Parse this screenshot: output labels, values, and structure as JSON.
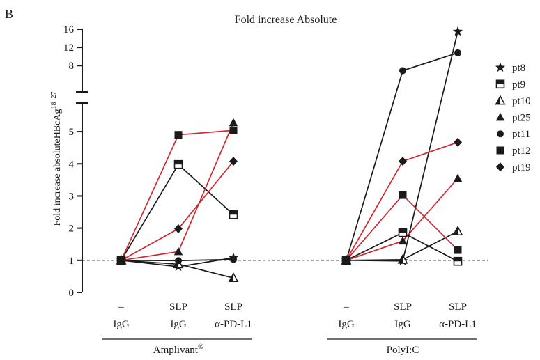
{
  "chart_data": {
    "type": "line",
    "panel_label": "B",
    "title": "Fold increase Absolute",
    "ylabel": "Fold increase absoluteHBcAg",
    "ylabel_superscript": "18–27",
    "ylim_lower": [
      0,
      5.5
    ],
    "ylim_upper": [
      6.5,
      16
    ],
    "y_ticks_lower": [
      "0",
      "1",
      "2",
      "3",
      "4",
      "5"
    ],
    "y_ticks_upper": [
      "8",
      "12",
      "16"
    ],
    "y_tick_values_lower": [
      0,
      1,
      2,
      3,
      4,
      5
    ],
    "y_tick_values_upper": [
      8,
      12,
      16
    ],
    "reference_line": 1,
    "groups": [
      {
        "name": "Amplivant",
        "name_superscript": "®",
        "categories": [
          {
            "line1": "–",
            "line2": "IgG"
          },
          {
            "line1": "SLP",
            "line2": "IgG"
          },
          {
            "line1": "SLP",
            "line2": "α-PD-L1"
          }
        ]
      },
      {
        "name": "PolyI:C",
        "name_superscript": "",
        "categories": [
          {
            "line1": "–",
            "line2": "IgG"
          },
          {
            "line1": "SLP",
            "line2": "IgG"
          },
          {
            "line1": "SLP",
            "line2": "α-PD-L1"
          }
        ]
      }
    ],
    "series": [
      {
        "name": "pt8",
        "marker": "star",
        "color": "#1a1a1a",
        "values": [
          [
            1,
            0.8,
            1.08
          ],
          [
            1,
            0.98,
            15.5
          ]
        ]
      },
      {
        "name": "pt9",
        "marker": "square-half",
        "color": "#1a1a1a",
        "values": [
          [
            1,
            3.98,
            2.42
          ],
          [
            1,
            1.86,
            0.97
          ]
        ]
      },
      {
        "name": "pt10",
        "marker": "triangle-half",
        "color": "#1a1a1a",
        "values": [
          [
            1,
            0.88,
            0.45
          ],
          [
            1,
            1.02,
            1.9
          ]
        ]
      },
      {
        "name": "pt25",
        "marker": "triangle",
        "color": "#d22630",
        "values": [
          [
            1,
            1.27,
            5.28
          ],
          [
            1,
            1.6,
            3.55
          ]
        ]
      },
      {
        "name": "pt11",
        "marker": "circle",
        "color": "#1a1a1a",
        "values": [
          [
            1,
            0.99,
            1.03
          ],
          [
            1,
            6.9,
            10.8
          ]
        ]
      },
      {
        "name": "pt12",
        "marker": "square",
        "color": "#d22630",
        "values": [
          [
            1,
            4.9,
            5.04
          ],
          [
            1,
            3.03,
            1.32
          ]
        ]
      },
      {
        "name": "pt19",
        "marker": "diamond",
        "color": "#d22630",
        "values": [
          [
            1,
            1.98,
            4.08
          ],
          [
            1,
            4.08,
            4.67
          ]
        ]
      }
    ]
  }
}
